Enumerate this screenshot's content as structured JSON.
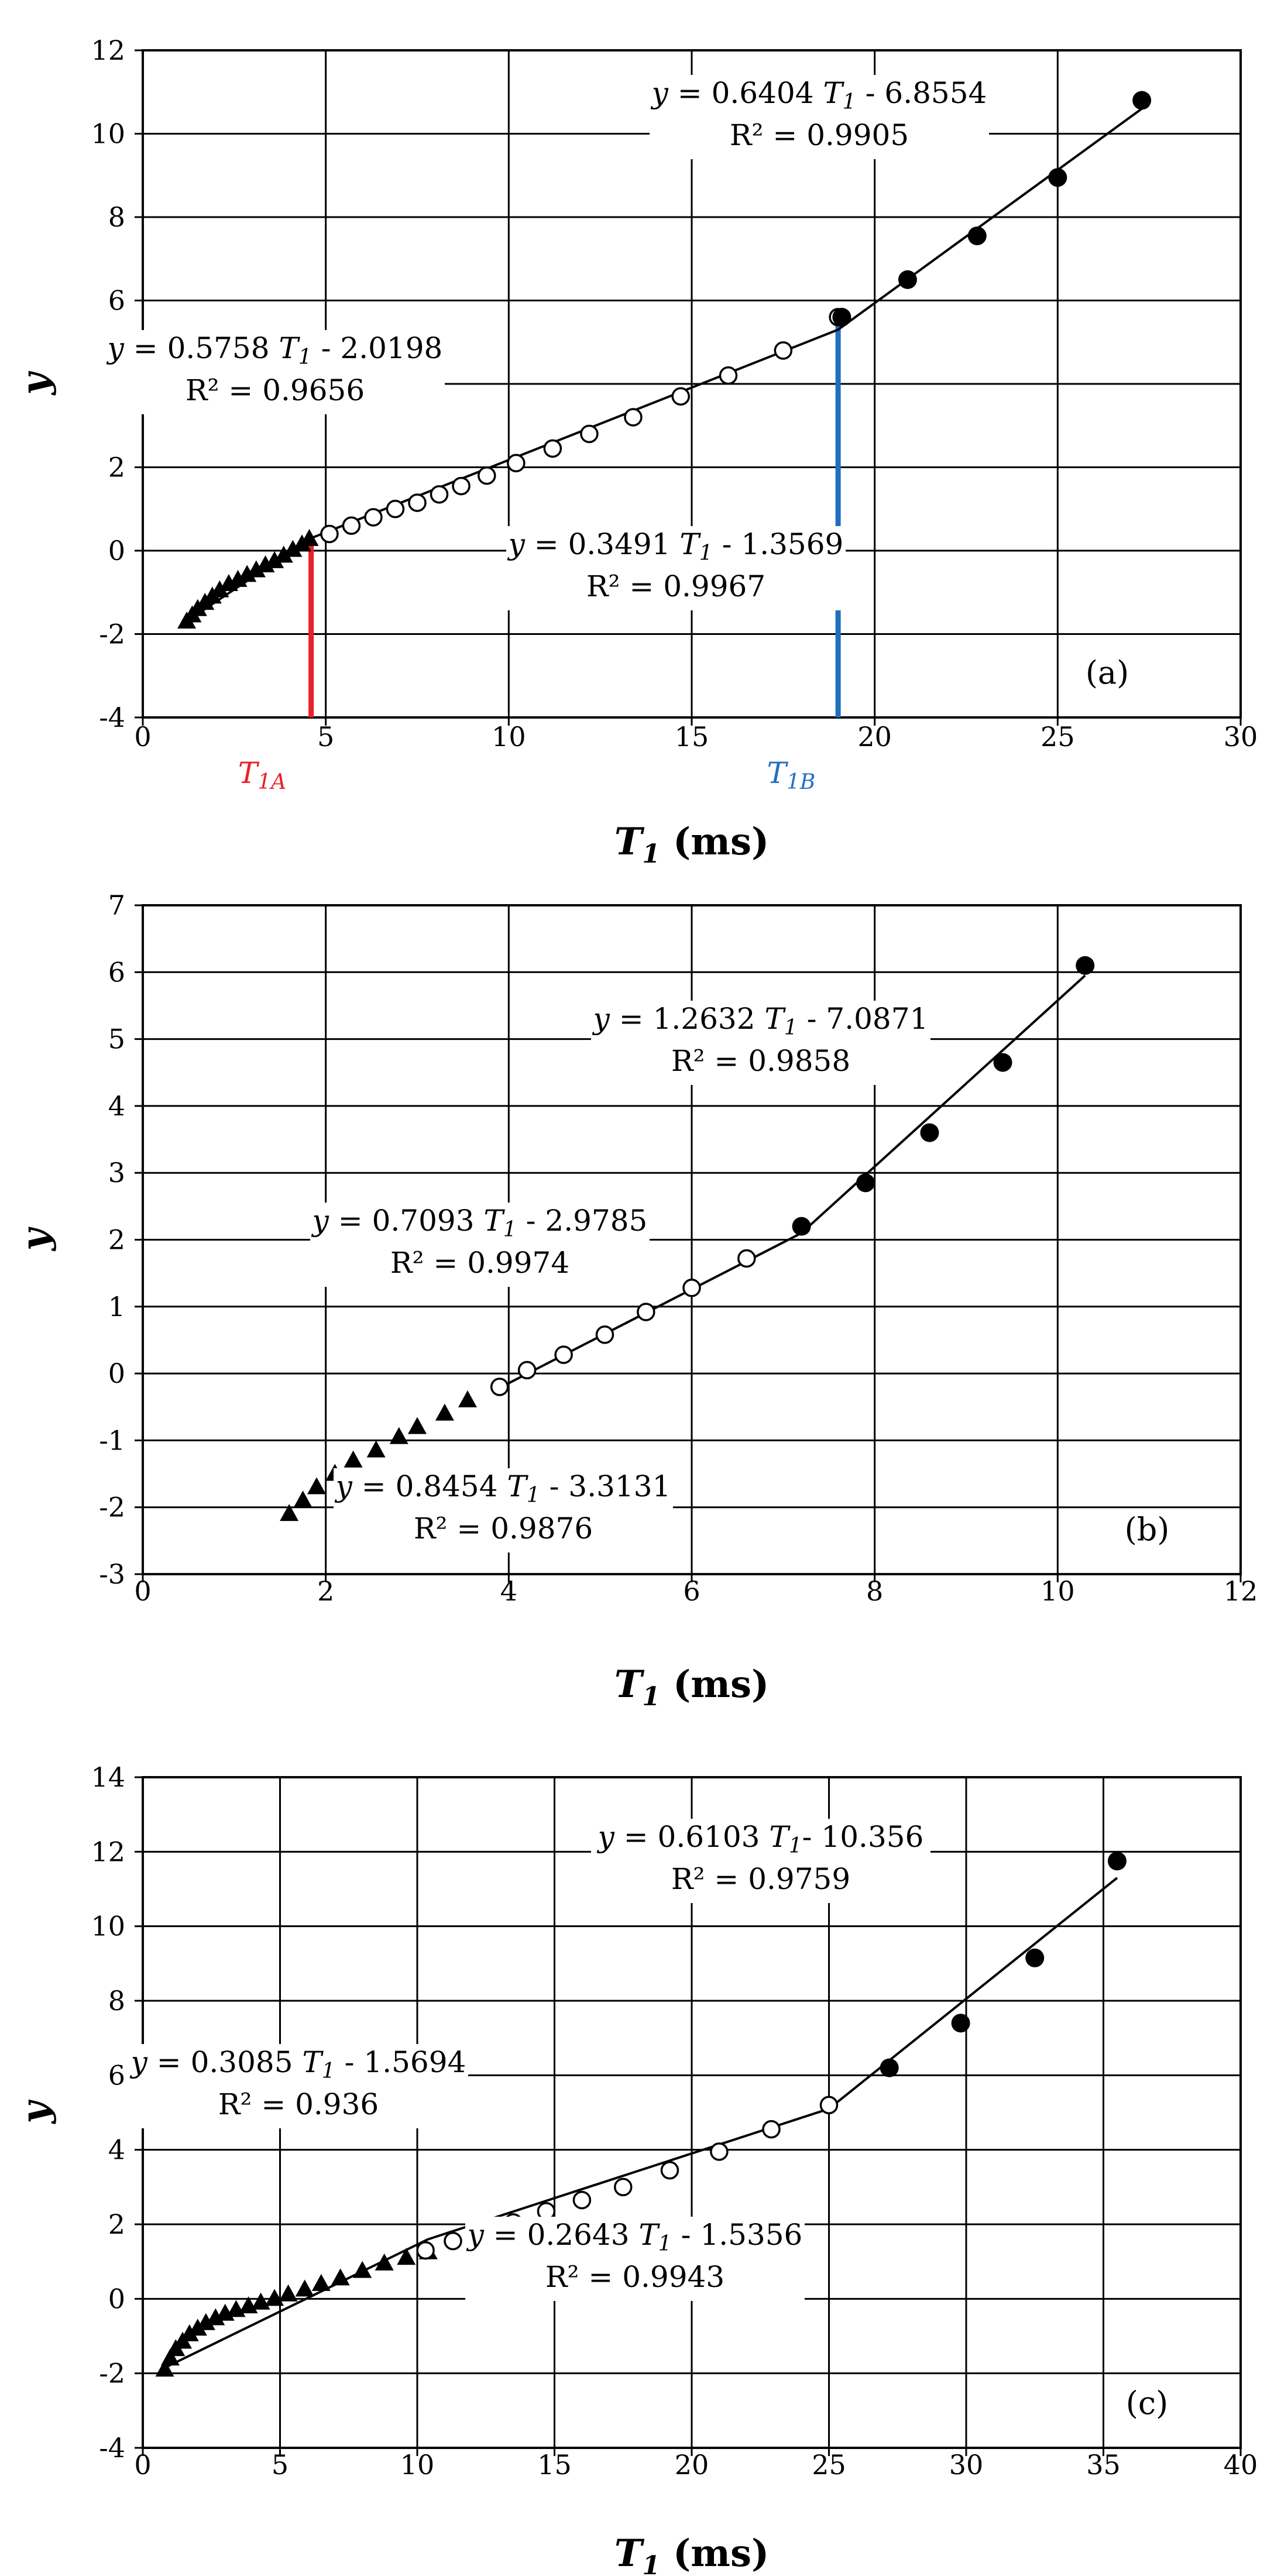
{
  "chart_data": [
    {
      "type": "scatter",
      "panel_label": "(a)",
      "ylabel": "y",
      "xlabel_main": "T",
      "xlabel_sub": "1",
      "xlabel_unit": "(ms)",
      "xlim": [
        0,
        30
      ],
      "ylim": [
        -4,
        12
      ],
      "xticks": [
        0,
        5,
        10,
        15,
        20,
        25,
        30
      ],
      "yticks": [
        -4,
        -2,
        0,
        2,
        4,
        6,
        8,
        10,
        12
      ],
      "xtick_labels": [
        "0",
        "5",
        "10",
        "15",
        "20",
        "25",
        "30"
      ],
      "ytick_labels": [
        "-4",
        "-2",
        "0",
        "2",
        "4",
        "6",
        "8",
        "10",
        "12"
      ],
      "grid": true,
      "series": [
        {
          "marker": "triangle",
          "x": [
            1.2,
            1.35,
            1.5,
            1.7,
            1.9,
            2.1,
            2.35,
            2.6,
            2.85,
            3.1,
            3.35,
            3.6,
            3.85,
            4.1,
            4.35,
            4.55
          ],
          "y": [
            -1.7,
            -1.55,
            -1.4,
            -1.25,
            -1.1,
            -0.95,
            -0.8,
            -0.7,
            -0.58,
            -0.47,
            -0.35,
            -0.25,
            -0.12,
            0.02,
            0.15,
            0.28
          ]
        },
        {
          "marker": "open-circle",
          "x": [
            5.1,
            5.7,
            6.3,
            6.9,
            7.5,
            8.1,
            8.7,
            9.4,
            10.2,
            11.2,
            12.2,
            13.4,
            14.7,
            16.0,
            17.5,
            19.0
          ],
          "y": [
            0.4,
            0.6,
            0.8,
            1.0,
            1.15,
            1.35,
            1.55,
            1.8,
            2.1,
            2.45,
            2.8,
            3.2,
            3.7,
            4.2,
            4.8,
            5.6
          ]
        },
        {
          "marker": "filled-circle",
          "x": [
            19.1,
            20.9,
            22.8,
            25.0,
            27.3
          ],
          "y": [
            5.6,
            6.5,
            7.55,
            8.95,
            10.8
          ]
        }
      ],
      "fit_lines": [
        {
          "x": [
            1.1,
            4.6
          ],
          "y": [
            -1.75,
            0.3
          ]
        },
        {
          "x": [
            4.6,
            19.0
          ],
          "y": [
            0.3,
            5.3
          ]
        },
        {
          "x": [
            19.0,
            27.3
          ],
          "y": [
            5.3,
            10.6
          ]
        }
      ],
      "vlines": [
        {
          "x": 4.6,
          "y": [
            -4,
            0.3
          ],
          "color": "#e8202a",
          "label_main": "T",
          "label_sub": "1A"
        },
        {
          "x": 19.0,
          "y": [
            -4,
            5.5
          ],
          "color": "#1f6fc0",
          "label_main": "T",
          "label_sub": "1B"
        }
      ],
      "annotations": [
        {
          "eq_pre": "y",
          "eq_mid": " = 0.6404 ",
          "eq_var": "T",
          "eq_sub": "1",
          "eq_post": " - 6.8554",
          "r2": "R² = 0.9905"
        },
        {
          "eq_pre": "y",
          "eq_mid": " = 0.5758 ",
          "eq_var": "T",
          "eq_sub": "1",
          "eq_post": " - 2.0198",
          "r2": "R² = 0.9656"
        },
        {
          "eq_pre": "y",
          "eq_mid": " = 0.3491 ",
          "eq_var": "T",
          "eq_sub": "1",
          "eq_post": " - 1.3569",
          "r2": "R² = 0.9967"
        }
      ]
    },
    {
      "type": "scatter",
      "panel_label": "(b)",
      "ylabel": "y",
      "xlabel_main": "T",
      "xlabel_sub": "1",
      "xlabel_unit": "(ms)",
      "xlim": [
        0,
        12
      ],
      "ylim": [
        -3,
        7
      ],
      "xticks": [
        0,
        2,
        4,
        6,
        8,
        10,
        12
      ],
      "yticks": [
        -3,
        -2,
        -1,
        0,
        1,
        2,
        3,
        4,
        5,
        6,
        7
      ],
      "xtick_labels": [
        "0",
        "2",
        "4",
        "6",
        "8",
        "10",
        "12"
      ],
      "ytick_labels": [
        "-3",
        "-2",
        "-1",
        "0",
        "1",
        "2",
        "3",
        "4",
        "5",
        "6",
        "7"
      ],
      "grid": true,
      "series": [
        {
          "marker": "triangle",
          "x": [
            1.6,
            1.75,
            1.9,
            2.1,
            2.3,
            2.55,
            2.8,
            3.0,
            3.3,
            3.55
          ],
          "y": [
            -2.1,
            -1.9,
            -1.7,
            -1.5,
            -1.3,
            -1.15,
            -0.95,
            -0.8,
            -0.6,
            -0.4
          ]
        },
        {
          "marker": "open-circle",
          "x": [
            3.9,
            4.2,
            4.6,
            5.05,
            5.5,
            6.0,
            6.6
          ],
          "y": [
            -0.2,
            0.05,
            0.28,
            0.58,
            0.92,
            1.28,
            1.72
          ]
        },
        {
          "marker": "filled-circle",
          "x": [
            7.2,
            7.9,
            8.6,
            9.4,
            10.3
          ],
          "y": [
            2.2,
            2.85,
            3.6,
            4.65,
            6.1
          ]
        }
      ],
      "fit_lines": [
        {
          "x": [
            3.85,
            7.2
          ],
          "y": [
            -0.25,
            2.1
          ]
        },
        {
          "x": [
            7.2,
            10.3
          ],
          "y": [
            2.1,
            5.95
          ]
        }
      ],
      "vlines": [],
      "annotations": [
        {
          "eq_pre": "y",
          "eq_mid": " = 1.2632 ",
          "eq_var": "T",
          "eq_sub": "1",
          "eq_post": " - 7.0871",
          "r2": "R² = 0.9858"
        },
        {
          "eq_pre": "y",
          "eq_mid": " = 0.7093 ",
          "eq_var": "T",
          "eq_sub": "1",
          "eq_post": " - 2.9785",
          "r2": "R² = 0.9974"
        },
        {
          "eq_pre": "y",
          "eq_mid": " = 0.8454 ",
          "eq_var": "T",
          "eq_sub": "1",
          "eq_post": " - 3.3131",
          "r2": "R² = 0.9876"
        }
      ]
    },
    {
      "type": "scatter",
      "panel_label": "(c)",
      "ylabel": "y",
      "xlabel_main": "T",
      "xlabel_sub": "1",
      "xlabel_unit": "(ms)",
      "xlim": [
        0,
        40
      ],
      "ylim": [
        -4,
        14
      ],
      "xticks": [
        0,
        5,
        10,
        15,
        20,
        25,
        30,
        35,
        40
      ],
      "yticks": [
        -4,
        -2,
        0,
        2,
        4,
        6,
        8,
        10,
        12,
        14
      ],
      "xtick_labels": [
        "0",
        "5",
        "10",
        "15",
        "20",
        "25",
        "30",
        "35",
        "40"
      ],
      "ytick_labels": [
        "-4",
        "-2",
        "0",
        "2",
        "4",
        "6",
        "8",
        "10",
        "12",
        "14"
      ],
      "grid": true,
      "series": [
        {
          "marker": "triangle",
          "x": [
            0.8,
            1.0,
            1.2,
            1.45,
            1.7,
            2.0,
            2.3,
            2.65,
            3.0,
            3.4,
            3.85,
            4.3,
            4.8,
            5.3,
            5.9,
            6.5,
            7.2,
            8.0,
            8.8,
            9.6,
            10.4
          ],
          "y": [
            -1.9,
            -1.6,
            -1.35,
            -1.15,
            -0.95,
            -0.8,
            -0.65,
            -0.52,
            -0.4,
            -0.3,
            -0.2,
            -0.1,
            0.0,
            0.12,
            0.25,
            0.4,
            0.55,
            0.75,
            0.95,
            1.1,
            1.25
          ]
        },
        {
          "marker": "open-circle",
          "x": [
            10.3,
            11.3,
            12.3,
            13.5,
            14.7,
            16.0,
            17.5,
            19.2,
            21.0,
            22.9,
            25.0
          ],
          "y": [
            1.3,
            1.55,
            1.8,
            2.05,
            2.35,
            2.65,
            3.0,
            3.45,
            3.95,
            4.55,
            5.2
          ]
        },
        {
          "marker": "filled-circle",
          "x": [
            27.2,
            29.8,
            32.5,
            35.5
          ],
          "y": [
            6.2,
            7.4,
            9.15,
            11.75
          ]
        }
      ],
      "fit_lines": [
        {
          "x": [
            0.8,
            10.4
          ],
          "y": [
            -1.85,
            1.6
          ]
        },
        {
          "x": [
            10.4,
            25.0
          ],
          "y": [
            1.6,
            5.1
          ]
        },
        {
          "x": [
            25.0,
            35.5
          ],
          "y": [
            5.1,
            11.3
          ]
        }
      ],
      "vlines": [],
      "annotations": [
        {
          "eq_pre": "y",
          "eq_mid": " = 0.6103 ",
          "eq_var": "T",
          "eq_sub": "1",
          "eq_post": "- 10.356",
          "r2": "R² = 0.9759"
        },
        {
          "eq_pre": "y",
          "eq_mid": " = 0.3085 ",
          "eq_var": "T",
          "eq_sub": "1",
          "eq_post": " - 1.5694",
          "r2": "R² = 0.936"
        },
        {
          "eq_pre": "y",
          "eq_mid": " = 0.2643 ",
          "eq_var": "T",
          "eq_sub": "1",
          "eq_post": " - 1.5356",
          "r2": "R² = 0.9943"
        }
      ]
    }
  ]
}
